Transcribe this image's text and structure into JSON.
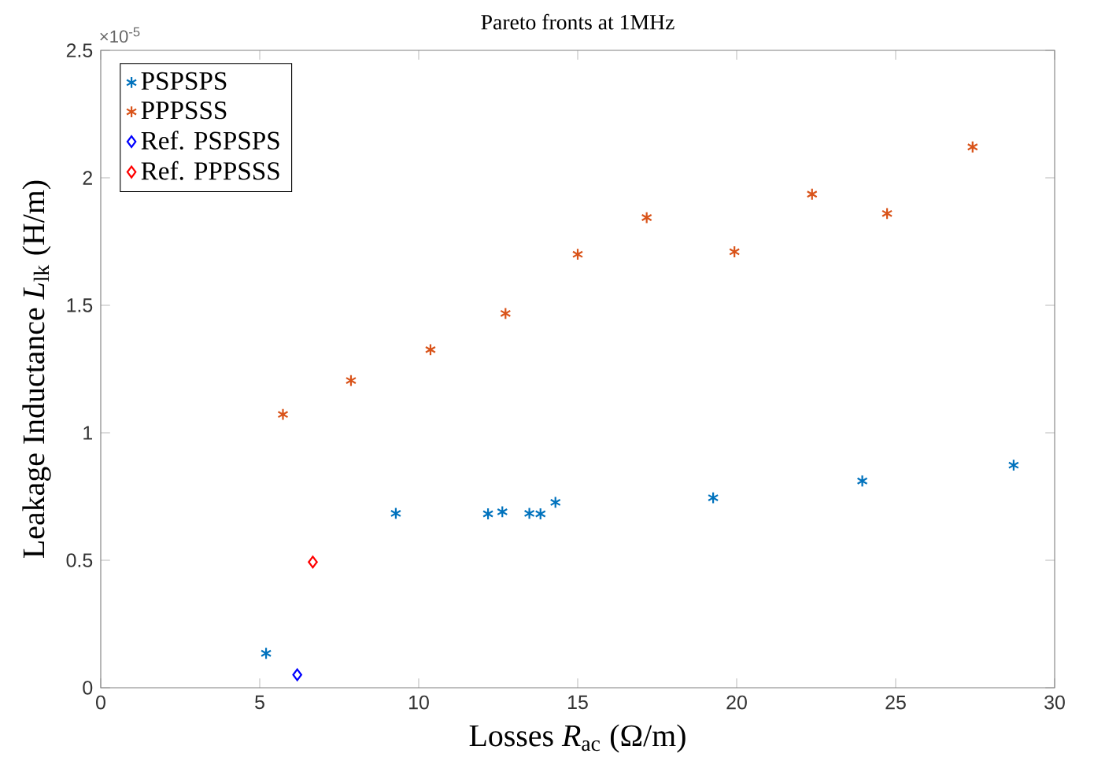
{
  "chart_data": {
    "type": "scatter",
    "title": "Pareto fronts at 1MHz",
    "xlabel": "Losses *R*$_{ac}$ (Ω/m)",
    "ylabel": "Leakage Inductance *L*$_{lk}$ (H/m)",
    "annotations": [
      "×10$^{-5}$"
    ],
    "xlim": [
      0,
      30
    ],
    "xticks": [
      0,
      5,
      10,
      15,
      20,
      25,
      30
    ],
    "ylim": [
      0,
      2.5
    ],
    "yticks": [
      0,
      0.5,
      1,
      1.5,
      2,
      2.5
    ],
    "grid": false,
    "legend": "top left",
    "series": [
      {
        "name": "PSPSPS",
        "color": "#0072bd",
        "marker": "cross",
        "x": [
          5.2,
          9.28,
          12.18,
          12.63,
          13.48,
          13.83,
          14.3,
          19.26,
          23.95,
          28.71
        ],
        "values": [
          0.135,
          0.684,
          0.682,
          0.69,
          0.684,
          0.682,
          0.727,
          0.745,
          0.811,
          0.873
        ]
      },
      {
        "name": "PPPSSS",
        "color": "#d95319",
        "marker": "cross",
        "x": [
          5.73,
          7.87,
          10.37,
          12.73,
          15.0,
          17.17,
          19.93,
          22.37,
          24.73,
          27.42
        ],
        "values": [
          1.072,
          1.205,
          1.326,
          1.468,
          1.7,
          1.844,
          1.71,
          1.936,
          1.86,
          2.121
        ]
      },
      {
        "name": "Ref. PSPSPS",
        "color": "#0000ff",
        "marker": "diamond",
        "x": [
          6.18
        ],
        "values": [
          0.051
        ]
      },
      {
        "name": "Ref. PPPSSS",
        "color": "#ff0000",
        "marker": "diamond",
        "x": [
          6.67
        ],
        "values": [
          0.493
        ]
      }
    ]
  }
}
